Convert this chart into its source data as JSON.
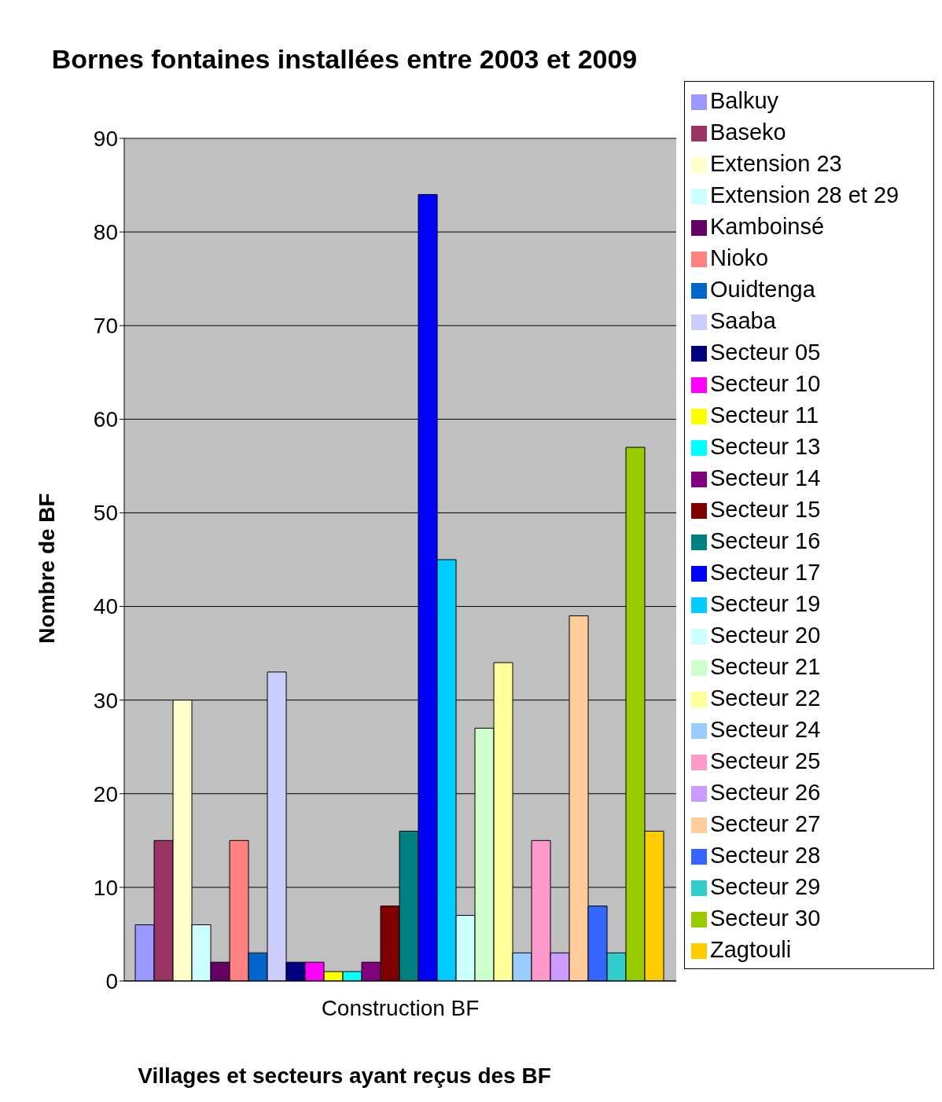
{
  "chart_data": {
    "type": "bar",
    "title": "Bornes fontaines installées entre 2003 et 2009",
    "xlabel": "Villages et secteurs ayant reçus des BF",
    "ylabel": "Nombre de BF",
    "categories": [
      "Construction BF"
    ],
    "series": [
      {
        "name": "Balkuy",
        "color": "#9999ff",
        "values": [
          6
        ]
      },
      {
        "name": "Baseko",
        "color": "#993366",
        "values": [
          15
        ]
      },
      {
        "name": "Extension 23",
        "color": "#ffffcc",
        "values": [
          30
        ]
      },
      {
        "name": "Extension 28 et 29",
        "color": "#ccffff",
        "values": [
          6
        ]
      },
      {
        "name": "Kamboinsé",
        "color": "#660066",
        "values": [
          2
        ]
      },
      {
        "name": "Nioko",
        "color": "#ff8080",
        "values": [
          15
        ]
      },
      {
        "name": "Ouidtenga",
        "color": "#0066cc",
        "values": [
          3
        ]
      },
      {
        "name": "Saaba",
        "color": "#ccccff",
        "values": [
          33
        ]
      },
      {
        "name": "Secteur 05",
        "color": "#000080",
        "values": [
          2
        ]
      },
      {
        "name": "Secteur 10",
        "color": "#ff00ff",
        "values": [
          2
        ]
      },
      {
        "name": "Secteur 11",
        "color": "#ffff00",
        "values": [
          1
        ]
      },
      {
        "name": "Secteur 13",
        "color": "#00ffff",
        "values": [
          1
        ]
      },
      {
        "name": "Secteur 14",
        "color": "#800080",
        "values": [
          2
        ]
      },
      {
        "name": "Secteur 15",
        "color": "#800000",
        "values": [
          8
        ]
      },
      {
        "name": "Secteur 16",
        "color": "#008080",
        "values": [
          16
        ]
      },
      {
        "name": "Secteur 17",
        "color": "#0000ff",
        "values": [
          84
        ]
      },
      {
        "name": "Secteur 19",
        "color": "#00ccff",
        "values": [
          45
        ]
      },
      {
        "name": "Secteur 20",
        "color": "#ccffff",
        "values": [
          7
        ]
      },
      {
        "name": "Secteur 21",
        "color": "#ccffcc",
        "values": [
          27
        ]
      },
      {
        "name": "Secteur 22",
        "color": "#ffff99",
        "values": [
          34
        ]
      },
      {
        "name": "Secteur 24",
        "color": "#99ccff",
        "values": [
          3
        ]
      },
      {
        "name": "Secteur 25",
        "color": "#ff99cc",
        "values": [
          15
        ]
      },
      {
        "name": "Secteur 26",
        "color": "#cc99ff",
        "values": [
          3
        ]
      },
      {
        "name": "Secteur 27",
        "color": "#ffcc99",
        "values": [
          39
        ]
      },
      {
        "name": "Secteur 28",
        "color": "#3366ff",
        "values": [
          8
        ]
      },
      {
        "name": "Secteur 29",
        "color": "#33cccc",
        "values": [
          3
        ]
      },
      {
        "name": "Secteur 30",
        "color": "#99cc00",
        "values": [
          57
        ]
      },
      {
        "name": "Zagtouli",
        "color": "#ffcc00",
        "values": [
          16
        ]
      }
    ],
    "ylim": [
      0,
      90
    ],
    "yticks": [
      0,
      10,
      20,
      30,
      40,
      50,
      60,
      70,
      80,
      90
    ],
    "grid": "y",
    "legend": "right"
  }
}
